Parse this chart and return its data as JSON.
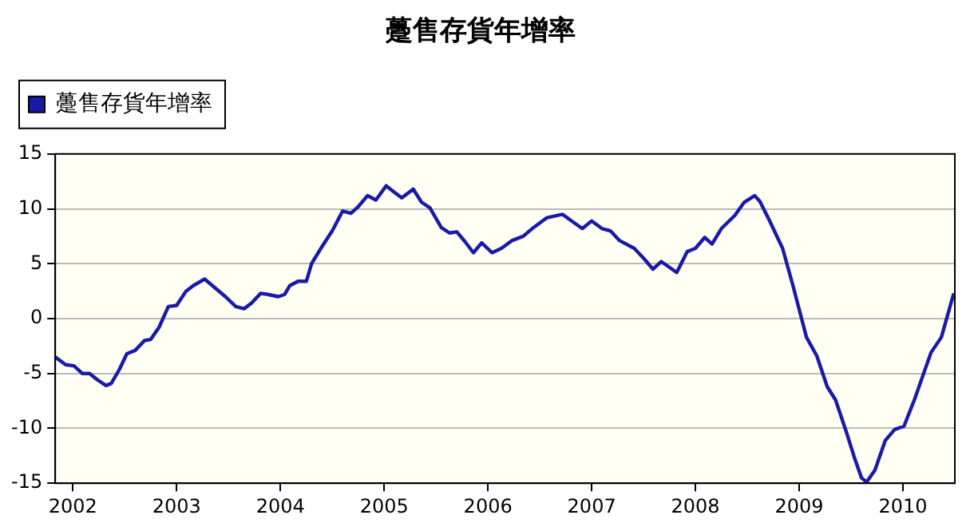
{
  "chart_data": {
    "type": "line",
    "title": "躉售存貨年增率",
    "legend": "top left",
    "grid": "y",
    "marker": "none",
    "line_style": "solid",
    "xlim": [
      2001.83,
      2010.5
    ],
    "xticks": [
      2002,
      2003,
      2004,
      2005,
      2006,
      2007,
      2008,
      2009,
      2010
    ],
    "ylim": [
      -15,
      15
    ],
    "yticks": [
      -15,
      -10,
      -5,
      0,
      5,
      10,
      15
    ],
    "series": [
      {
        "name": "躉售存貨年增率",
        "color": "#1a1aa8",
        "x": [
          2001.83,
          2001.93,
          2002.01,
          2002.09,
          2002.16,
          2002.24,
          2002.32,
          2002.37,
          2002.45,
          2002.52,
          2002.6,
          2002.69,
          2002.75,
          2002.83,
          2002.92,
          2003.0,
          2003.09,
          2003.16,
          2003.27,
          2003.37,
          2003.47,
          2003.57,
          2003.65,
          2003.72,
          2003.81,
          2003.88,
          2003.98,
          2004.04,
          2004.09,
          2004.17,
          2004.25,
          2004.3,
          2004.39,
          2004.5,
          2004.6,
          2004.68,
          2004.75,
          2004.84,
          2004.92,
          2005.02,
          2005.1,
          2005.17,
          2005.28,
          2005.36,
          2005.44,
          2005.55,
          2005.63,
          2005.7,
          2005.78,
          2005.86,
          2005.94,
          2006.04,
          2006.13,
          2006.23,
          2006.34,
          2006.44,
          2006.57,
          2006.72,
          2006.82,
          2006.91,
          2007.0,
          2007.1,
          2007.18,
          2007.27,
          2007.41,
          2007.51,
          2007.59,
          2007.67,
          2007.82,
          2007.92,
          2008.0,
          2008.09,
          2008.16,
          2008.25,
          2008.38,
          2008.47,
          2008.57,
          2008.62,
          2008.71,
          2008.84,
          2008.94,
          2009.07,
          2009.17,
          2009.27,
          2009.35,
          2009.45,
          2009.53,
          2009.6,
          2009.65,
          2009.73,
          2009.83,
          2009.92,
          2010.01,
          2010.11,
          2010.27,
          2010.37,
          2010.49
        ],
        "values": [
          -3.5,
          -4.2,
          -4.3,
          -5.0,
          -5.0,
          -5.6,
          -6.1,
          -5.9,
          -4.6,
          -3.2,
          -2.9,
          -2.0,
          -1.9,
          -0.8,
          1.1,
          1.2,
          2.5,
          3.0,
          3.6,
          2.8,
          2.0,
          1.1,
          0.9,
          1.4,
          2.3,
          2.2,
          2.0,
          2.2,
          3.0,
          3.4,
          3.4,
          5.0,
          6.4,
          8.0,
          9.8,
          9.6,
          10.2,
          11.2,
          10.8,
          12.1,
          11.5,
          11.0,
          11.8,
          10.6,
          10.1,
          8.3,
          7.8,
          7.9,
          7.0,
          6.0,
          6.9,
          6.0,
          6.4,
          7.1,
          7.5,
          8.3,
          9.2,
          9.5,
          8.8,
          8.2,
          8.9,
          8.2,
          8.0,
          7.1,
          6.4,
          5.4,
          4.5,
          5.2,
          4.2,
          6.1,
          6.4,
          7.4,
          6.8,
          8.2,
          9.4,
          10.6,
          11.2,
          10.7,
          9.0,
          6.4,
          3.0,
          -1.7,
          -3.4,
          -6.2,
          -7.4,
          -10.2,
          -12.6,
          -14.5,
          -14.9,
          -13.8,
          -11.1,
          -10.1,
          -9.8,
          -7.4,
          -3.1,
          -1.7,
          2.3
        ]
      }
    ]
  }
}
